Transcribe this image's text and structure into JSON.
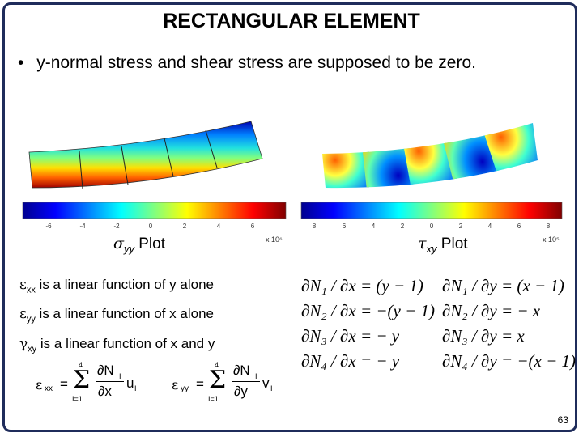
{
  "title": "RECTANGULAR ELEMENT",
  "bullet": {
    "marker": "•",
    "text": "y-normal stress and shear stress are supposed to be zero."
  },
  "left_plot": {
    "caption_symbol": "σ",
    "caption_sub": "yy",
    "caption_text": " Plot",
    "scale_label": "x 10⁶",
    "colorbar_ticks": [
      "-6",
      "-4",
      "-2",
      "0",
      "2",
      "4",
      "6"
    ]
  },
  "right_plot": {
    "caption_symbol": "τ",
    "caption_sub": "xy",
    "caption_text": " Plot",
    "scale_label": "x 10⁵",
    "colorbar_ticks": [
      "8",
      "6",
      "4",
      "2",
      "0",
      "2",
      "4",
      "6",
      "8"
    ]
  },
  "statements": [
    {
      "symbol": "ε",
      "sub": "xx",
      "text": " is a linear function of y alone"
    },
    {
      "symbol": "ε",
      "sub": "yy",
      "text": " is a linear function of x alone"
    },
    {
      "symbol": "γ",
      "sub": "xy",
      "text": " is a linear function of x and y"
    }
  ],
  "derivatives_x": [
    "∂N₁ / ∂x = (y − 1)",
    "∂N₂ / ∂x = −(y − 1)",
    "∂N₃ / ∂x = − y",
    "∂N₄ / ∂x = − y"
  ],
  "derivatives_y": [
    "∂N₁ / ∂y = (x − 1)",
    "∂N₂ / ∂y = − x",
    "∂N₃ / ∂y = x",
    "∂N₄ / ∂y = −(x − 1)"
  ],
  "sum_formulas": [
    {
      "lhs_symbol": "ε",
      "lhs_sub": "xx",
      "eq": "=",
      "sigma": "Σ",
      "upper": "4",
      "lower": "I=1",
      "num": "∂N",
      "num_sub": "I",
      "den": "∂x",
      "term": "u",
      "term_sub": "I"
    },
    {
      "lhs_symbol": "ε",
      "lhs_sub": "yy",
      "eq": "=",
      "sigma": "Σ",
      "upper": "4",
      "lower": "I=1",
      "num": "∂N",
      "num_sub": "I",
      "den": "∂y",
      "term": "v",
      "term_sub": "I"
    }
  ],
  "page_number": "63",
  "colors": {
    "frame": "#1f2c5b"
  }
}
